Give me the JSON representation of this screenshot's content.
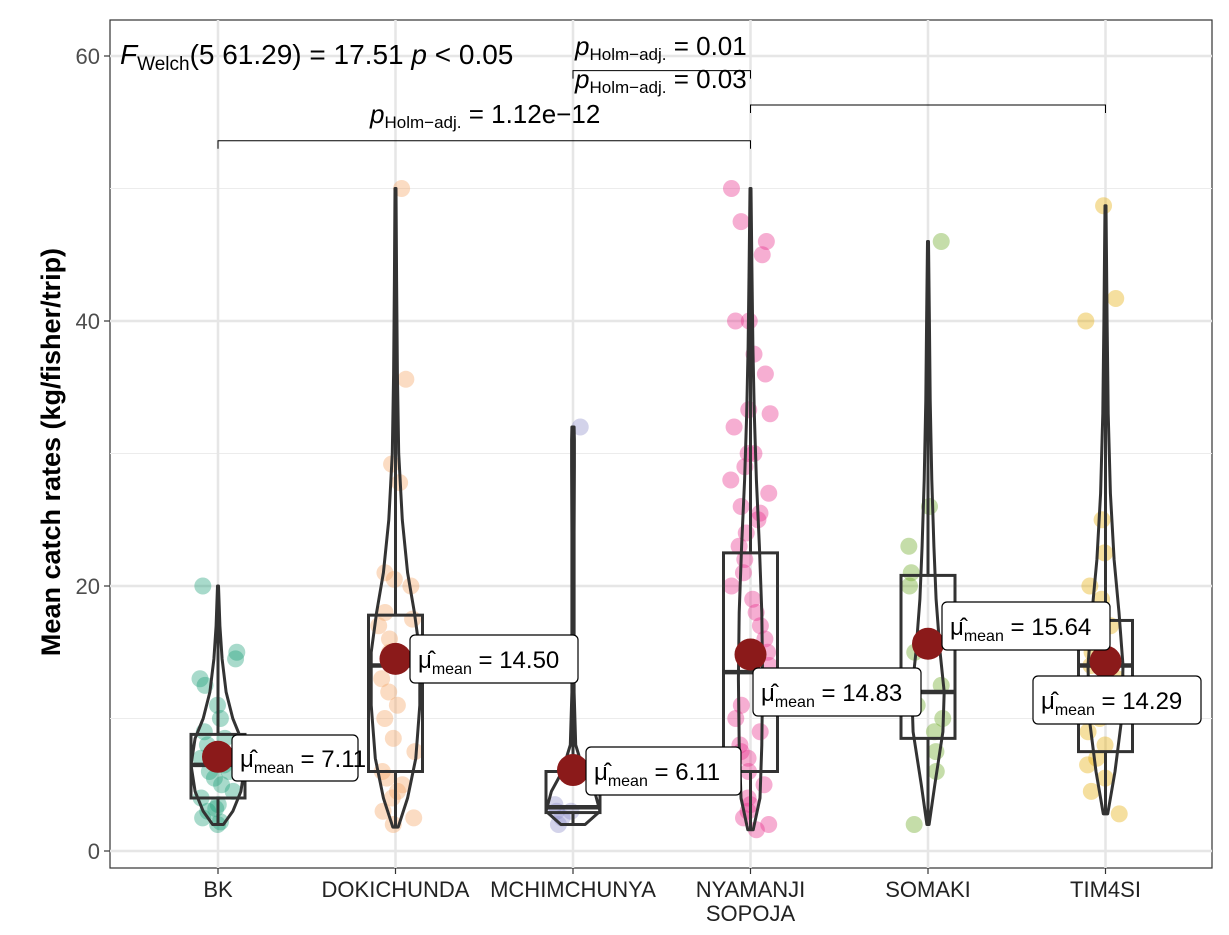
{
  "chart_data": {
    "type": "violin-box",
    "ylabel": "Mean catch rates (kg/fisher/trip)",
    "xlabel": "",
    "ylim": [
      -1.3,
      62
    ],
    "yticks": [
      0,
      20,
      40,
      60
    ],
    "grid": true,
    "test": {
      "stat_prefix": "F",
      "stat_sub": "Welch",
      "df_text": "(5  61.29)",
      "stat_value": "= 17.51",
      "p_text": "p < 0.05"
    },
    "pairwise": [
      {
        "from": "NYAMANJI SOPOJA",
        "to": "TIM4SI",
        "p_prefix": "p",
        "p_sub": "Holm−adj.",
        "p_value": "= 0.01",
        "bracket_y": 56.3
      },
      {
        "from": "MCHIMCHUNYA",
        "to": "NYAMANJI SOPOJA",
        "p_prefix": "p",
        "p_sub": "Holm−adj.",
        "p_value": "= 0.03",
        "bracket_y": 58.9
      },
      {
        "from": "BK",
        "to": "NYAMANJI SOPOJA",
        "p_prefix": "p",
        "p_sub": "Holm−adj.",
        "p_value": "= 1.12e−12",
        "bracket_y": 53.6
      }
    ],
    "mean_prefix": "μ̂",
    "mean_sub": "mean",
    "groups": [
      {
        "category": "BK",
        "color": "#1B9E77",
        "mean": 7.11,
        "mean_label": "= 7.11",
        "q1": 4.0,
        "median": 6.5,
        "q3": 8.8,
        "min": 2.0,
        "max": 20.0,
        "violin": [
          [
            2.0,
            0.2
          ],
          [
            3,
            0.55
          ],
          [
            4.5,
            0.85
          ],
          [
            6.5,
            1.0
          ],
          [
            8.5,
            0.85
          ],
          [
            10,
            0.55
          ],
          [
            12,
            0.3
          ],
          [
            14.5,
            0.15
          ],
          [
            17,
            0.07
          ],
          [
            20,
            0.02
          ]
        ],
        "points": [
          2,
          2.2,
          2.5,
          3,
          3.2,
          3.5,
          4,
          4.5,
          5,
          5.5,
          6,
          6,
          6.5,
          7,
          7.5,
          8,
          8.5,
          9,
          10,
          11,
          12.5,
          13,
          14.5,
          15,
          20
        ]
      },
      {
        "category": "DOKICHUNDA",
        "color": "#F4A460",
        "mean": 14.5,
        "mean_label": "= 14.50",
        "q1": 6.0,
        "median": 14.0,
        "q3": 17.8,
        "min": 1.8,
        "max": 50.0,
        "violin": [
          [
            1.8,
            0.1
          ],
          [
            4,
            0.45
          ],
          [
            7,
            0.75
          ],
          [
            11,
            0.9
          ],
          [
            15,
            0.9
          ],
          [
            18,
            0.7
          ],
          [
            21,
            0.45
          ],
          [
            25,
            0.25
          ],
          [
            30,
            0.12
          ],
          [
            36,
            0.07
          ],
          [
            43,
            0.04
          ],
          [
            50,
            0.02
          ]
        ],
        "points": [
          2,
          2.5,
          3,
          4,
          4.5,
          5,
          5.5,
          6,
          7.5,
          8.5,
          10,
          11,
          12,
          13,
          14.5,
          15,
          16,
          17,
          17.5,
          18,
          20,
          20.5,
          21,
          27.8,
          29.2,
          35.6,
          50
        ]
      },
      {
        "category": "MCHIMCHUNYA",
        "color": "#8C8CC8",
        "mean": 6.11,
        "mean_label": "= 6.11",
        "q1": 2.9,
        "median": 3.3,
        "q3": 6.0,
        "min": 2.0,
        "max": 32.0,
        "violin": [
          [
            2.0,
            0.45
          ],
          [
            3,
            1.0
          ],
          [
            4.5,
            0.8
          ],
          [
            6,
            0.4
          ],
          [
            8,
            0.1
          ],
          [
            12,
            0.04
          ],
          [
            18,
            0.04
          ],
          [
            24,
            0.04
          ],
          [
            29,
            0.05
          ],
          [
            31,
            0.05
          ],
          [
            32,
            0.04
          ]
        ],
        "points": [
          2,
          2.5,
          3,
          3,
          3.5,
          15,
          32
        ]
      },
      {
        "category": "NYAMANJI SOPOJA",
        "color": "#E7298A",
        "mean": 14.83,
        "mean_label": "= 14.83",
        "q1": 6.0,
        "median": 13.5,
        "q3": 22.5,
        "min": 1.6,
        "max": 50.0,
        "violin": [
          [
            1.6,
            0.1
          ],
          [
            4,
            0.35
          ],
          [
            8,
            0.42
          ],
          [
            13,
            0.45
          ],
          [
            18,
            0.42
          ],
          [
            23,
            0.33
          ],
          [
            28,
            0.22
          ],
          [
            33,
            0.14
          ],
          [
            38,
            0.09
          ],
          [
            44,
            0.05
          ],
          [
            50,
            0.02
          ]
        ],
        "points": [
          1.6,
          2,
          2.5,
          3,
          3.5,
          4,
          5,
          6,
          7,
          7.5,
          8,
          9,
          10,
          11,
          12,
          13,
          14,
          15,
          16,
          17,
          18,
          19,
          20,
          21,
          22,
          23,
          24,
          25,
          25.5,
          26,
          27,
          28,
          29,
          30,
          30,
          32,
          33,
          33.3,
          36,
          37.5,
          40,
          40,
          45,
          46,
          47.5,
          50
        ]
      },
      {
        "category": "SOMAKI",
        "color": "#66A61E",
        "mean": 15.64,
        "mean_label": "= 15.64",
        "q1": 8.5,
        "median": 12.0,
        "q3": 20.8,
        "min": 2.0,
        "max": 46.0,
        "violin": [
          [
            2.0,
            0.04
          ],
          [
            5,
            0.25
          ],
          [
            9,
            0.55
          ],
          [
            12,
            0.6
          ],
          [
            15,
            0.45
          ],
          [
            19,
            0.3
          ],
          [
            23,
            0.22
          ],
          [
            28,
            0.14
          ],
          [
            34,
            0.08
          ],
          [
            40,
            0.05
          ],
          [
            46,
            0.02
          ]
        ],
        "points": [
          2,
          6,
          7.5,
          9,
          10,
          11,
          12.5,
          15,
          20,
          21,
          23,
          26,
          46
        ]
      },
      {
        "category": "TIM4SI",
        "color": "#E6AB02",
        "mean": 14.29,
        "mean_label": "= 14.29",
        "q1": 7.5,
        "median": 14.0,
        "q3": 17.4,
        "min": 2.8,
        "max": 48.7,
        "violin": [
          [
            2.8,
            0.08
          ],
          [
            6,
            0.35
          ],
          [
            10,
            0.6
          ],
          [
            14,
            0.65
          ],
          [
            18,
            0.5
          ],
          [
            22,
            0.32
          ],
          [
            27,
            0.18
          ],
          [
            33,
            0.1
          ],
          [
            40,
            0.06
          ],
          [
            48.7,
            0.02
          ]
        ],
        "points": [
          2.8,
          4.5,
          5.5,
          6.5,
          7,
          8,
          9,
          10,
          11,
          12,
          13,
          14,
          15,
          16,
          17,
          18,
          19,
          20,
          22.5,
          25,
          40,
          41.7,
          48.7
        ]
      }
    ],
    "x_tick_labels": [
      [
        "BK"
      ],
      [
        "DOKICHUNDA"
      ],
      [
        "MCHIMCHUNYA"
      ],
      [
        "NYAMANJI",
        "SOPOJA"
      ],
      [
        "SOMAKI"
      ],
      [
        "TIM4SI"
      ]
    ]
  }
}
